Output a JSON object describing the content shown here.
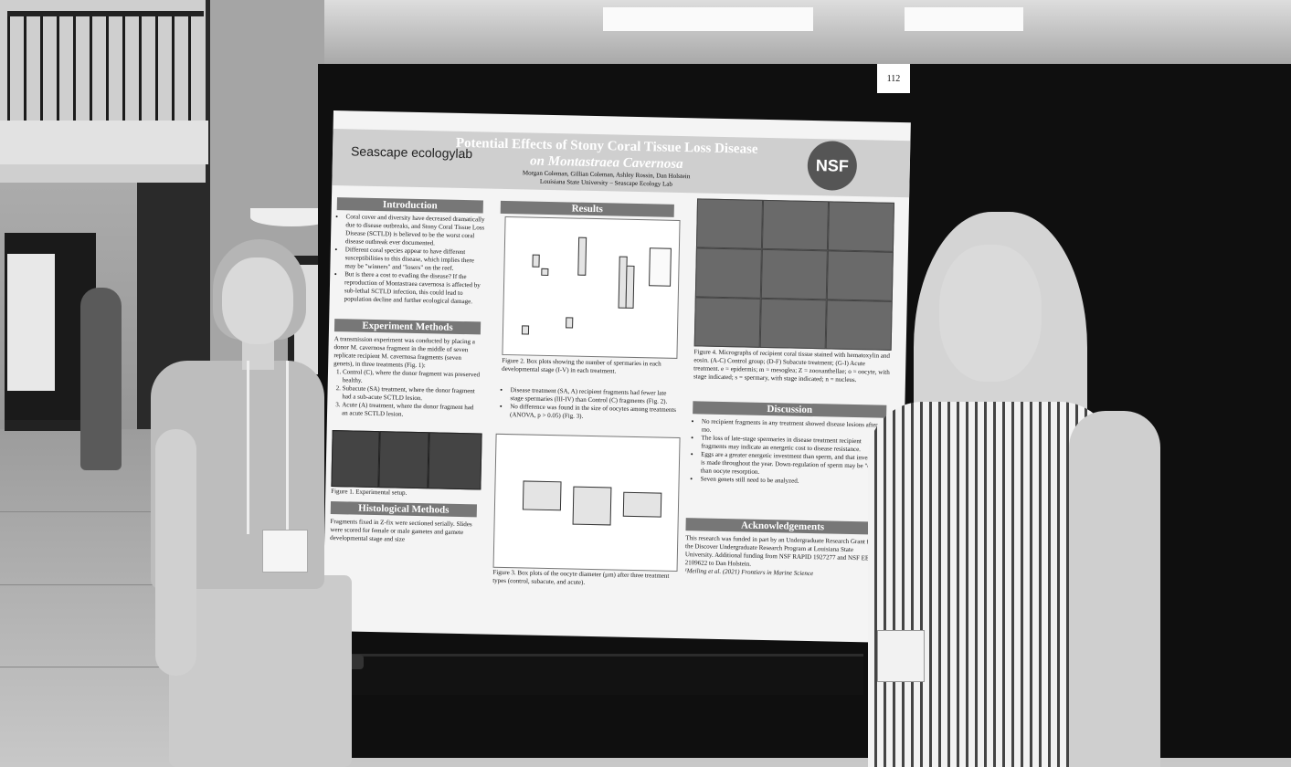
{
  "board_number": "112",
  "poster": {
    "logo": "Seascape ecologylab",
    "title_line1": "Potential Effects of Stony Coral Tissue Loss Disease",
    "title_line2": "on Montastraea Cavernosa",
    "authors": "Morgan Coleman, Gillian Coleman, Ashley Rossin, Dan Holstein",
    "affiliation": "Louisiana State University – Seascape Ecology Lab",
    "nsf_logo": "NSF",
    "introduction": {
      "heading": "Introduction",
      "bullets": [
        "Coral cover and diversity have decreased dramatically due to disease outbreaks, and Stony Coral Tissue Loss Disease (SCTLD) is believed to be the worst coral disease outbreak ever documented.",
        "Different coral species appear to have different susceptibilities to this disease, which implies there may be \"winners\" and \"losers\" on the reef.",
        "But is there a cost to evading the disease? If the reproduction of Montastraea cavernosa is affected by sub-lethal SCTLD infection, this could lead to population decline and further ecological damage."
      ]
    },
    "experiment_methods": {
      "heading": "Experiment Methods",
      "intro": "A transmission experiment was conducted by placing a donor M. cavernosa fragment in the middle of seven replicate recipient M. cavernosa fragments (seven genets), in three treatments (Fig. 1):",
      "items": [
        "Control (C), where the donor fragment was preserved healthy.",
        "Subacute (SA) treatment, where the donor fragment had a sub-acute SCTLD lesion.",
        "Acute (A) treatment, where the donor fragment had an acute SCTLD lesion."
      ],
      "figure1_caption": "Figure 1. Experimental setup."
    },
    "histological_methods": {
      "heading": "Histological Methods",
      "text": "Fragments fixed in Z-fix were sectioned serially. Slides were scored for female or male gametes and gamete developmental stage and size"
    },
    "results": {
      "heading": "Results",
      "figure2_caption": "Figure 2. Box plots showing the number of spermaries in each developmental stage (I-V) in each treatment.",
      "bullets": [
        "Disease treatment (SA, A) recipient fragments had fewer late stage spermaries (III-IV) than Control (C) fragments (Fig. 2).",
        "No difference was found in the size of oocytes among treatments (ANOVA, p > 0.05) (Fig. 3)."
      ],
      "figure3_caption": "Figure 3. Box plots of the oocyte diameter (µm) after three treatment types (control, subacute, and acute)."
    },
    "figure4_caption": "Figure 4. Micrographs of recipient coral tissue stained with hematoxylin and eosin. (A-C) Control group; (D-F) Subacute treatment; (G-I) Acute treatment. e = epidermis; m = mesoglea; Z = zooxanthellae; o = oocyte, with stage indicated; s = spermary, with stage indicated; n = nucleus.",
    "discussion": {
      "heading": "Discussion",
      "bullets": [
        "No recipient fragments in any treatment showed disease lesions after ~2 mo.",
        "The loss of late-stage spermaries in disease treatment recipient fragments may indicate an energetic cost to disease resistance.",
        "Eggs are a greater energetic investment than sperm, and that investment is made throughout the year. Down-regulation of sperm may be \"easier\" than oocyte resorption.",
        "Seven genets still need to be analyzed."
      ]
    },
    "acknowledgements": {
      "heading": "Acknowledgements",
      "text": "This research was funded in part by an Undergraduate Research Grant from the Discover Undergraduate Research Program at Louisiana State University. Additional funding from NSF RAPID 1927277 and NSF EEID 2109622 to Dan Holstein.",
      "reference": "¹Meiling et al. (2021) Frontiers in Marine Science"
    }
  }
}
